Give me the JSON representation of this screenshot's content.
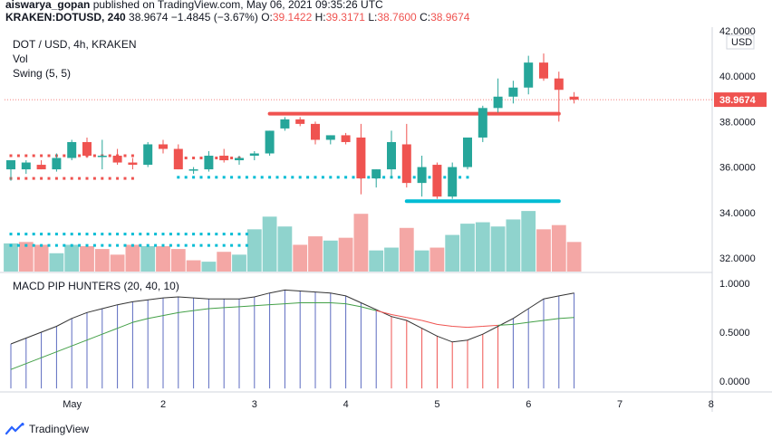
{
  "header": {
    "line1_user": "aiswarya_gopan",
    "line1_rest": " published on TradingView.com, May 06, 2021 09:35:26 UTC",
    "symbol": "KRAKEN:DOTUSD, 240",
    "last": "38.9674",
    "change": "−1.4845 (−3.67%)",
    "o_label": "O:",
    "o_value": "39.1422",
    "h_label": "H:",
    "h_value": "39.3171",
    "l_label": "L:",
    "l_value": "38.7600",
    "c_label": "C:",
    "c_value": "38.9674"
  },
  "legend": {
    "title": "DOT / USD, 4h, KRAKEN",
    "vol": "Vol",
    "swing": "Swing (5, 5)",
    "macd": "MACD PIP HUNTERS (20, 40, 10)"
  },
  "colors": {
    "up": "#26a69a",
    "down": "#ef5350",
    "vol_up": "#8fd3cd",
    "vol_down": "#f4a7a5",
    "resistance": "#f05350",
    "support": "#00bcd4",
    "macd_line": "#333333",
    "signal_line_green": "#43a047",
    "signal_line_red": "#ef5350",
    "hist_up": "#5c6bc0",
    "hist_down": "#ef5350",
    "price_tag": "#ef5350"
  },
  "footer": {
    "brand": "TradingView",
    "icon": "tradingview-logo-icon"
  },
  "chart_data": [
    {
      "type": "candlestick",
      "title": "DOT / USD, 4h, KRAKEN",
      "currency": "USD",
      "last_price_label": "38.9674",
      "ylim": [
        31.4,
        42.0
      ],
      "y_ticks": [
        {
          "value": 42,
          "label": "42.0000"
        },
        {
          "value": 40,
          "label": "40.0000"
        },
        {
          "value": 38,
          "label": "38.0000"
        },
        {
          "value": 36,
          "label": "36.0000"
        },
        {
          "value": 34,
          "label": "34.0000"
        },
        {
          "value": 32,
          "label": "32.0000"
        }
      ],
      "x_ticks": [
        {
          "x": 4,
          "label": "May"
        },
        {
          "x": 10,
          "label": "2"
        },
        {
          "x": 16,
          "label": "3"
        },
        {
          "x": 22,
          "label": "4"
        },
        {
          "x": 28,
          "label": "5"
        },
        {
          "x": 34,
          "label": "6"
        },
        {
          "x": 40,
          "label": "7"
        },
        {
          "x": 46,
          "label": "8"
        }
      ],
      "candles": [
        {
          "o": 35.9,
          "h": 36.2,
          "l": 35.4,
          "c": 36.3
        },
        {
          "o": 35.9,
          "h": 36.3,
          "l": 35.7,
          "c": 36.2
        },
        {
          "o": 36.1,
          "h": 36.3,
          "l": 35.9,
          "c": 35.9
        },
        {
          "o": 35.9,
          "h": 36.6,
          "l": 35.8,
          "c": 36.4
        },
        {
          "o": 36.4,
          "h": 37.2,
          "l": 36.3,
          "c": 37.1
        },
        {
          "o": 37.1,
          "h": 37.3,
          "l": 36.4,
          "c": 36.5
        },
        {
          "o": 36.5,
          "h": 37.2,
          "l": 35.9,
          "c": 36.5
        },
        {
          "o": 36.5,
          "h": 36.8,
          "l": 36.1,
          "c": 36.2
        },
        {
          "o": 36.2,
          "h": 36.4,
          "l": 35.9,
          "c": 36.1
        },
        {
          "o": 36.1,
          "h": 37.1,
          "l": 36.0,
          "c": 37.0
        },
        {
          "o": 37.0,
          "h": 37.2,
          "l": 36.6,
          "c": 36.8
        },
        {
          "o": 36.8,
          "h": 37.0,
          "l": 35.9,
          "c": 35.9
        },
        {
          "o": 35.9,
          "h": 36.0,
          "l": 35.7,
          "c": 35.9
        },
        {
          "o": 35.9,
          "h": 36.7,
          "l": 35.8,
          "c": 36.5
        },
        {
          "o": 36.5,
          "h": 36.8,
          "l": 36.2,
          "c": 36.3
        },
        {
          "o": 36.3,
          "h": 36.5,
          "l": 36.1,
          "c": 36.4
        },
        {
          "o": 36.5,
          "h": 36.7,
          "l": 36.3,
          "c": 36.6
        },
        {
          "o": 36.6,
          "h": 37.6,
          "l": 36.5,
          "c": 37.6
        },
        {
          "o": 37.7,
          "h": 38.2,
          "l": 37.6,
          "c": 38.1
        },
        {
          "o": 38.1,
          "h": 38.2,
          "l": 37.8,
          "c": 37.9
        },
        {
          "o": 37.9,
          "h": 38.0,
          "l": 37.0,
          "c": 37.2
        },
        {
          "o": 37.2,
          "h": 37.4,
          "l": 37.0,
          "c": 37.4
        },
        {
          "o": 37.4,
          "h": 37.5,
          "l": 37.0,
          "c": 37.1
        },
        {
          "o": 37.3,
          "h": 37.9,
          "l": 34.8,
          "c": 35.5
        },
        {
          "o": 35.5,
          "h": 35.9,
          "l": 35.1,
          "c": 35.9
        },
        {
          "o": 35.9,
          "h": 37.6,
          "l": 35.5,
          "c": 37.1
        },
        {
          "o": 37.0,
          "h": 37.9,
          "l": 35.1,
          "c": 35.3
        },
        {
          "o": 35.3,
          "h": 36.5,
          "l": 34.7,
          "c": 36.0
        },
        {
          "o": 36.1,
          "h": 36.2,
          "l": 34.6,
          "c": 34.7
        },
        {
          "o": 34.7,
          "h": 36.2,
          "l": 34.6,
          "c": 36.0
        },
        {
          "o": 36.0,
          "h": 37.3,
          "l": 35.9,
          "c": 37.3
        },
        {
          "o": 37.3,
          "h": 38.7,
          "l": 37.1,
          "c": 38.6
        },
        {
          "o": 38.6,
          "h": 39.9,
          "l": 38.4,
          "c": 39.1
        },
        {
          "o": 39.1,
          "h": 39.8,
          "l": 38.8,
          "c": 39.5
        },
        {
          "o": 39.5,
          "h": 40.9,
          "l": 39.2,
          "c": 40.6
        },
        {
          "o": 40.6,
          "h": 41.0,
          "l": 39.8,
          "c": 39.9
        },
        {
          "o": 39.9,
          "h": 40.2,
          "l": 38.0,
          "c": 39.4
        },
        {
          "o": 39.1,
          "h": 39.3,
          "l": 38.8,
          "c": 38.97
        }
      ],
      "resistance_line": {
        "x0": 17,
        "x1": 36,
        "y": 38.35
      },
      "support_line": {
        "x0": 26,
        "x1": 36,
        "y": 34.5
      },
      "swing_high_dots": {
        "x0": 0,
        "x1": 8,
        "y": 36.5
      },
      "swing_low_dots": {
        "x0": 0,
        "x1": 8,
        "y": 35.5
      },
      "swing_mid_dots": {
        "x0": 11,
        "x1": 30,
        "y": 35.55
      },
      "swing_high2_dots": {
        "x0": 11,
        "x1": 15,
        "y": 36.4
      }
    },
    {
      "type": "bar",
      "title": "Vol",
      "values": [
        2.0,
        2.1,
        1.9,
        1.3,
        1.9,
        1.8,
        1.6,
        1.2,
        1.9,
        1.8,
        1.8,
        1.6,
        0.8,
        0.7,
        1.4,
        1.2,
        3.0,
        3.9,
        3.2,
        1.9,
        2.5,
        2.2,
        2.4,
        4.1,
        1.5,
        1.7,
        3.1,
        1.5,
        1.7,
        2.6,
        3.4,
        3.5,
        3.2,
        3.7,
        4.3,
        3.0,
        3.3,
        2.1
      ],
      "directions": [
        "u",
        "d",
        "d",
        "u",
        "u",
        "d",
        "d",
        "d",
        "d",
        "u",
        "d",
        "d",
        "d",
        "u",
        "d",
        "u",
        "u",
        "u",
        "u",
        "d",
        "d",
        "u",
        "d",
        "d",
        "u",
        "u",
        "d",
        "u",
        "d",
        "u",
        "u",
        "u",
        "u",
        "u",
        "u",
        "d",
        "d",
        "d"
      ]
    },
    {
      "type": "line",
      "title": "MACD PIP HUNTERS (20, 40, 10)",
      "ylim": [
        -0.1,
        1.1
      ],
      "y_ticks": [
        {
          "value": 1.0,
          "label": "1.0000"
        },
        {
          "value": 0.5,
          "label": "0.5000"
        },
        {
          "value": 0.0,
          "label": "0.0000"
        }
      ],
      "series": [
        {
          "name": "",
          "values": [
            0.38,
            0.44,
            0.5,
            0.56,
            0.64,
            0.7,
            0.74,
            0.78,
            0.81,
            0.83,
            0.85,
            0.86,
            0.85,
            0.84,
            0.84,
            0.84,
            0.86,
            0.9,
            0.93,
            0.92,
            0.91,
            0.9,
            0.87,
            0.8,
            0.73,
            0.66,
            0.62,
            0.54,
            0.46,
            0.4,
            0.42,
            0.48,
            0.56,
            0.64,
            0.74,
            0.84,
            0.87,
            0.9
          ]
        },
        {
          "name": "",
          "values": [
            0.12,
            0.18,
            0.24,
            0.3,
            0.36,
            0.42,
            0.48,
            0.54,
            0.6,
            0.64,
            0.67,
            0.7,
            0.72,
            0.74,
            0.75,
            0.76,
            0.77,
            0.78,
            0.79,
            0.8,
            0.8,
            0.8,
            0.79,
            0.76,
            0.72,
            0.68,
            0.65,
            0.62,
            0.58,
            0.56,
            0.55,
            0.56,
            0.57,
            0.58,
            0.6,
            0.62,
            0.64,
            0.65
          ]
        }
      ]
    }
  ]
}
